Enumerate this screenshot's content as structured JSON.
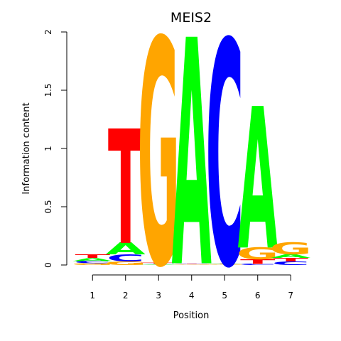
{
  "chart_data": {
    "type": "sequence-logo",
    "title": "MEIS2",
    "xlabel": "Position",
    "ylabel": "Information content",
    "ylim": [
      0,
      2
    ],
    "yticks": [
      "0",
      "0.5",
      "1",
      "1.5",
      "2"
    ],
    "positions": [
      "1",
      "2",
      "3",
      "4",
      "5",
      "6",
      "7"
    ],
    "colors": {
      "A": "#00ff00",
      "C": "#0000ff",
      "G": "#ffa500",
      "T": "#ff0000"
    },
    "stacks": [
      [
        {
          "letter": "G",
          "height": 0.015
        },
        {
          "letter": "C",
          "height": 0.02
        },
        {
          "letter": "A",
          "height": 0.025
        },
        {
          "letter": "T",
          "height": 0.03
        }
      ],
      [
        {
          "letter": "G",
          "height": 0.03
        },
        {
          "letter": "C",
          "height": 0.06
        },
        {
          "letter": "A",
          "height": 0.1
        },
        {
          "letter": "T",
          "height": 0.97
        }
      ],
      [
        {
          "letter": "A",
          "height": 0.005
        },
        {
          "letter": "C",
          "height": 0.005
        },
        {
          "letter": "T",
          "height": 0.01
        },
        {
          "letter": "G",
          "height": 1.91
        }
      ],
      [
        {
          "letter": "G",
          "height": 0.005
        },
        {
          "letter": "C",
          "height": 0.005
        },
        {
          "letter": "T",
          "height": 0.005
        },
        {
          "letter": "A",
          "height": 1.92
        }
      ],
      [
        {
          "letter": "G",
          "height": 0.005
        },
        {
          "letter": "A",
          "height": 0.005
        },
        {
          "letter": "T",
          "height": 0.005
        },
        {
          "letter": "C",
          "height": 1.9
        }
      ],
      [
        {
          "letter": "C",
          "height": 0.01
        },
        {
          "letter": "T",
          "height": 0.04
        },
        {
          "letter": "G",
          "height": 0.1
        },
        {
          "letter": "A",
          "height": 1.2
        }
      ],
      [
        {
          "letter": "C",
          "height": 0.03
        },
        {
          "letter": "T",
          "height": 0.03
        },
        {
          "letter": "A",
          "height": 0.03
        },
        {
          "letter": "G",
          "height": 0.1
        }
      ]
    ]
  }
}
